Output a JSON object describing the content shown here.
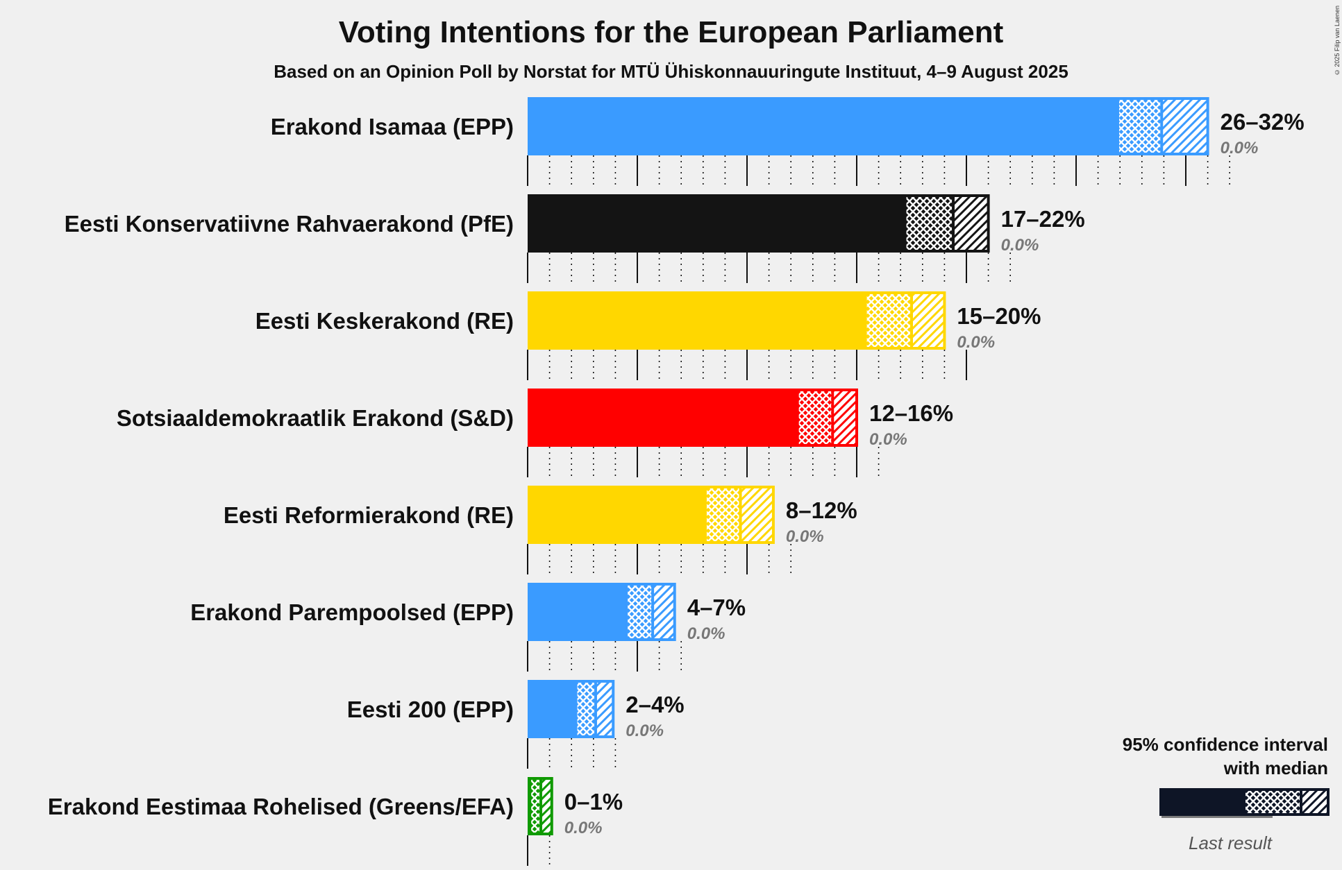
{
  "title": "Voting Intentions for the European Parliament",
  "subtitle": "Based on an Opinion Poll by Norstat for MTÜ Ühiskonnauuringute Instituut, 4–9 August 2025",
  "copyright": "© 2025 Filip van Laenen",
  "legend": {
    "line1": "95% confidence interval",
    "line2": "with median",
    "last_result": "Last result"
  },
  "chart_data": {
    "type": "bar",
    "orientation": "horizontal",
    "title": "Voting Intentions for the European Parliament",
    "subtitle": "Based on an Opinion Poll by Norstat for MTÜ Ühiskonnauuringute Instituut, 4–9 August 2025",
    "unit": "%",
    "xlim": [
      0,
      32
    ],
    "grid": "dotted ticks every 1%, solid every 5%",
    "legend_placement": "bottom-right",
    "parties": [
      {
        "name": "Erakond Isamaa (EPP)",
        "color": "#3a9bff",
        "low": 26,
        "median": 28.9,
        "high": 32,
        "ci80_low": 26.9,
        "ci80_high": 31.0,
        "range_label": "26–32%",
        "last_result": "0.0%"
      },
      {
        "name": "Eesti Konservatiivne Rahvaerakond (PfE)",
        "color": "#141414",
        "low": 17,
        "median": 19.4,
        "high": 22,
        "ci80_low": 17.2,
        "ci80_high": 21.0,
        "range_label": "17–22%",
        "last_result": "0.0%"
      },
      {
        "name": "Eesti Keskerakond (RE)",
        "color": "#ffd700",
        "low": 15,
        "median": 17.5,
        "high": 20,
        "ci80_low": 15.4,
        "ci80_high": 19.0,
        "range_label": "15–20%",
        "last_result": "0.0%"
      },
      {
        "name": "Sotsiaaldemokraatlik Erakond (S&D)",
        "color": "#ff0000",
        "low": 12,
        "median": 13.9,
        "high": 16,
        "ci80_low": 12.3,
        "ci80_high": 15.0,
        "range_label": "12–16%",
        "last_result": "0.0%"
      },
      {
        "name": "Eesti Reformierakond (RE)",
        "color": "#ffd700",
        "low": 8,
        "median": 9.7,
        "high": 12,
        "ci80_low": 8.1,
        "ci80_high": 11.2,
        "range_label": "8–12%",
        "last_result": "0.0%"
      },
      {
        "name": "Erakond Parempoolsed (EPP)",
        "color": "#3a9bff",
        "low": 4,
        "median": 5.7,
        "high": 7,
        "ci80_low": 4.5,
        "ci80_high": 6.7,
        "range_label": "4–7%",
        "last_result": "0.0%"
      },
      {
        "name": "Eesti 200 (EPP)",
        "color": "#3a9bff",
        "low": 2,
        "median": 3.1,
        "high": 4,
        "ci80_low": 2.2,
        "ci80_high": 3.9,
        "range_label": "2–4%",
        "last_result": "0.0%"
      },
      {
        "name": "Erakond Eestimaa Rohelised (Greens/EFA)",
        "color": "#0f9a00",
        "low": 0,
        "median": 0.6,
        "high": 1,
        "ci80_low": 0.1,
        "ci80_high": 1.1,
        "range_label": "0–1%",
        "last_result": "0.0%"
      }
    ]
  }
}
